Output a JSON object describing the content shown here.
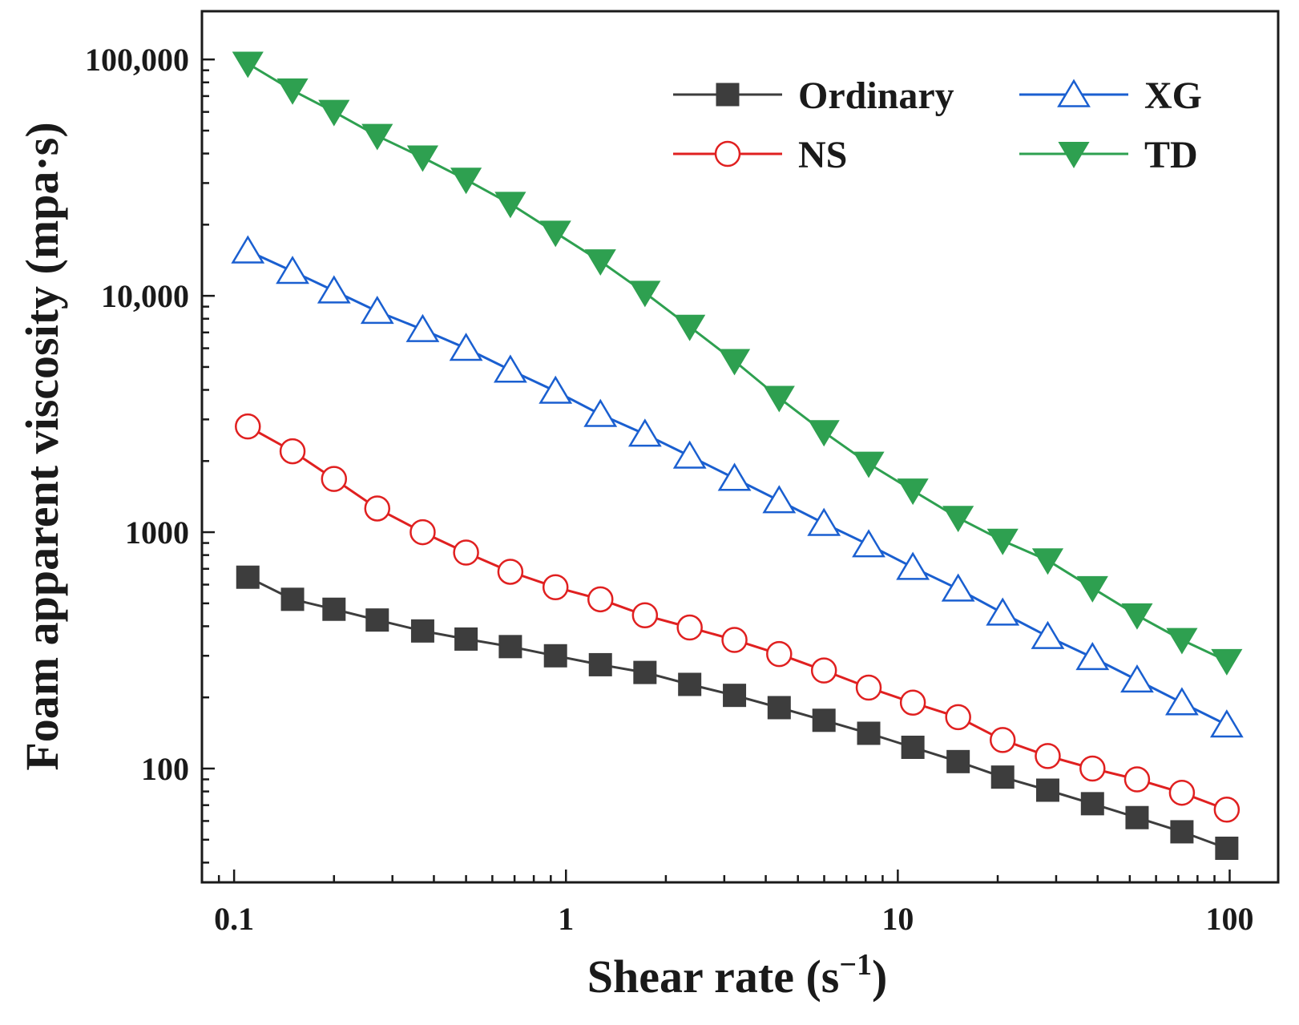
{
  "chart_data": {
    "type": "line",
    "title": "",
    "xlabel": "Shear rate (s",
    "xlabel_sup": "−1",
    "xlabel_close": ")",
    "ylabel": "Foam apparent viscosity (mpa·s)",
    "x_scale": "log",
    "y_scale": "log",
    "xlim": [
      0.08,
      140
    ],
    "ylim": [
      33,
      160000
    ],
    "x_ticks": [
      0.1,
      1,
      10,
      100
    ],
    "x_tick_labels": [
      "0.1",
      "1",
      "10",
      "100"
    ],
    "y_ticks": [
      100,
      1000,
      10000,
      100000
    ],
    "y_tick_labels": [
      "100",
      "1000",
      "10,000",
      "100,000"
    ],
    "grid": false,
    "legend_position": "top-right",
    "x": [
      0.11,
      0.15,
      0.2,
      0.27,
      0.37,
      0.5,
      0.68,
      0.93,
      1.27,
      1.73,
      2.36,
      3.22,
      4.39,
      5.99,
      8.17,
      11.1,
      15.2,
      20.7,
      28.3,
      38.6,
      52.6,
      71.8,
      98
    ],
    "series": [
      {
        "name": "Ordinary",
        "color": "#3d3d3d",
        "marker": "filled-square",
        "values": [
          645,
          520,
          472,
          425,
          382,
          353,
          328,
          300,
          275,
          255,
          227,
          204,
          181,
          160,
          141,
          123,
          107,
          92,
          81,
          71,
          62,
          54,
          46
        ]
      },
      {
        "name": "NS",
        "color": "#e02020",
        "marker": "open-circle",
        "values": [
          2800,
          2200,
          1680,
          1260,
          1000,
          820,
          680,
          585,
          520,
          445,
          395,
          350,
          305,
          260,
          220,
          190,
          165,
          132,
          113,
          100,
          90,
          79,
          67
        ]
      },
      {
        "name": "XG",
        "color": "#1a5fd0",
        "marker": "open-triangle-up",
        "values": [
          15500,
          12700,
          10500,
          8600,
          7200,
          6000,
          4850,
          3950,
          3150,
          2600,
          2100,
          1690,
          1360,
          1090,
          885,
          710,
          575,
          455,
          362,
          295,
          237,
          190,
          153
        ]
      },
      {
        "name": "TD",
        "color": "#2ea050",
        "marker": "filled-triangle-down",
        "values": [
          96000,
          74000,
          60000,
          47500,
          38500,
          31000,
          24500,
          18500,
          14000,
          10300,
          7400,
          5300,
          3700,
          2650,
          1950,
          1500,
          1150,
          920,
          760,
          580,
          445,
          350,
          285
        ]
      }
    ]
  }
}
